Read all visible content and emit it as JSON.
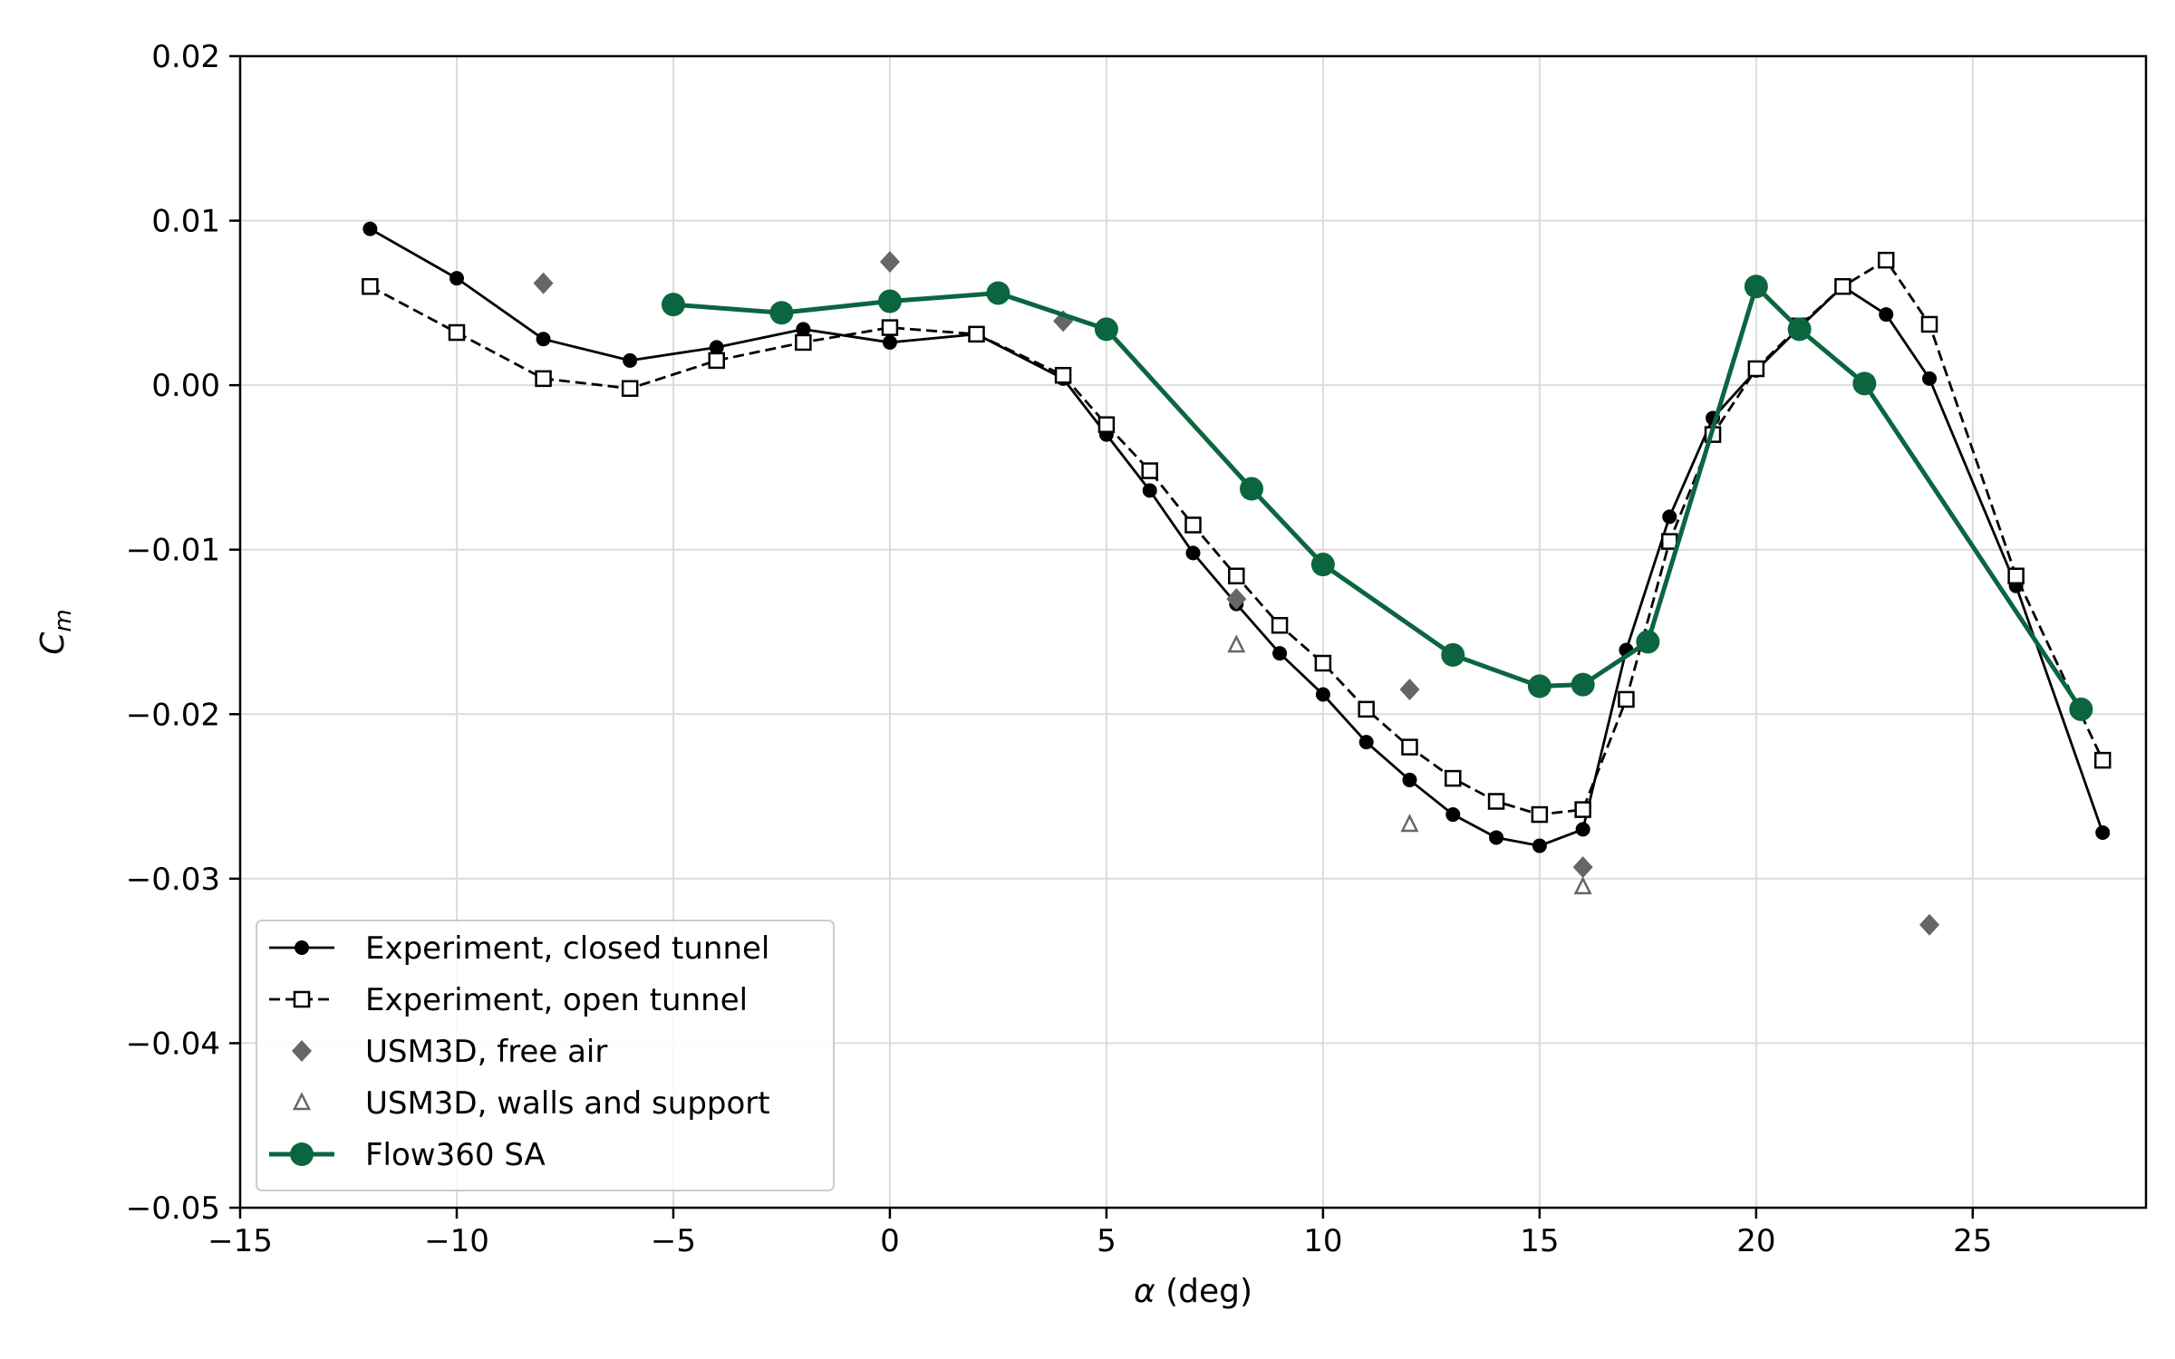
{
  "chart_data": {
    "type": "line",
    "title": "",
    "xlabel_symbol": "α",
    "xlabel_unit": " (deg)",
    "ylabel_main": "C",
    "ylabel_sub": "m",
    "xlim": [
      -15,
      29
    ],
    "ylim": [
      -0.05,
      0.02
    ],
    "xticks": [
      -15,
      -10,
      -5,
      0,
      5,
      10,
      15,
      20,
      25
    ],
    "xtick_labels": [
      "−15",
      "−10",
      "−5",
      "0",
      "5",
      "10",
      "15",
      "20",
      "25"
    ],
    "yticks": [
      0.02,
      0.01,
      0.0,
      -0.01,
      -0.02,
      -0.03,
      -0.04,
      -0.05
    ],
    "ytick_labels": [
      "0.02",
      "0.01",
      "0.00",
      "−0.01",
      "−0.02",
      "−0.03",
      "−0.04",
      "−0.05"
    ],
    "grid": true,
    "legend_position": "lower-left",
    "series": [
      {
        "name": "Experiment, closed tunnel",
        "color": "#000000",
        "style": "solid",
        "marker": "circle",
        "x": [
          -12,
          -10,
          -8,
          -6,
          -4,
          -2,
          0,
          2,
          4,
          5,
          6,
          7,
          8,
          9,
          10,
          11,
          12,
          13,
          14,
          15,
          16,
          17,
          18,
          19,
          20,
          21,
          22,
          23,
          24,
          26,
          28
        ],
        "y": [
          0.0095,
          0.0065,
          0.0028,
          0.0015,
          0.0023,
          0.0034,
          0.0026,
          0.0031,
          0.0004,
          -0.003,
          -0.0064,
          -0.0102,
          -0.0133,
          -0.0163,
          -0.0188,
          -0.0217,
          -0.024,
          -0.0261,
          -0.0275,
          -0.028,
          -0.027,
          -0.0161,
          -0.008,
          -0.002,
          0.0009,
          0.0035,
          0.006,
          0.0043,
          0.0004,
          -0.0122,
          -0.0272
        ]
      },
      {
        "name": "Experiment, open tunnel",
        "color": "#000000",
        "style": "dashed",
        "marker": "square-open",
        "x": [
          -12,
          -10,
          -8,
          -6,
          -4,
          -2,
          0,
          2,
          4,
          5,
          6,
          7,
          8,
          9,
          10,
          11,
          12,
          13,
          14,
          15,
          16,
          17,
          18,
          19,
          20,
          21,
          22,
          23,
          24,
          26,
          28
        ],
        "y": [
          0.006,
          0.0032,
          0.0004,
          -0.0002,
          0.0015,
          0.0026,
          0.0035,
          0.0031,
          0.0006,
          -0.0024,
          -0.0052,
          -0.0085,
          -0.0116,
          -0.0146,
          -0.0169,
          -0.0197,
          -0.022,
          -0.0239,
          -0.0253,
          -0.0261,
          -0.0258,
          -0.0191,
          -0.0095,
          -0.003,
          0.001,
          0.0036,
          0.006,
          0.0076,
          0.0037,
          -0.0116,
          -0.0228
        ]
      },
      {
        "name": "USM3D, free air",
        "color": "#666666",
        "style": "none",
        "marker": "diamond",
        "x": [
          -8,
          0,
          4,
          8,
          12,
          16,
          24
        ],
        "y": [
          0.0062,
          0.0075,
          0.0039,
          -0.013,
          -0.0185,
          -0.0293,
          -0.0328
        ]
      },
      {
        "name": "USM3D, walls and support",
        "color": "#666666",
        "style": "none",
        "marker": "triangle-open",
        "x": [
          8,
          12,
          16
        ],
        "y": [
          -0.0158,
          -0.0267,
          -0.0305
        ]
      },
      {
        "name": "Flow360 SA",
        "color": "#0b6640",
        "style": "solid-thick",
        "marker": "circle-large",
        "x": [
          -5,
          -2.5,
          0,
          2.5,
          5,
          8.35,
          10,
          13,
          15,
          16,
          17.5,
          20,
          21,
          22.5,
          27.5
        ],
        "y": [
          0.0049,
          0.0044,
          0.0051,
          0.0056,
          0.0034,
          -0.0063,
          -0.0109,
          -0.0164,
          -0.0183,
          -0.0182,
          -0.0156,
          0.006,
          0.0034,
          0.0001,
          -0.0197
        ]
      }
    ]
  }
}
